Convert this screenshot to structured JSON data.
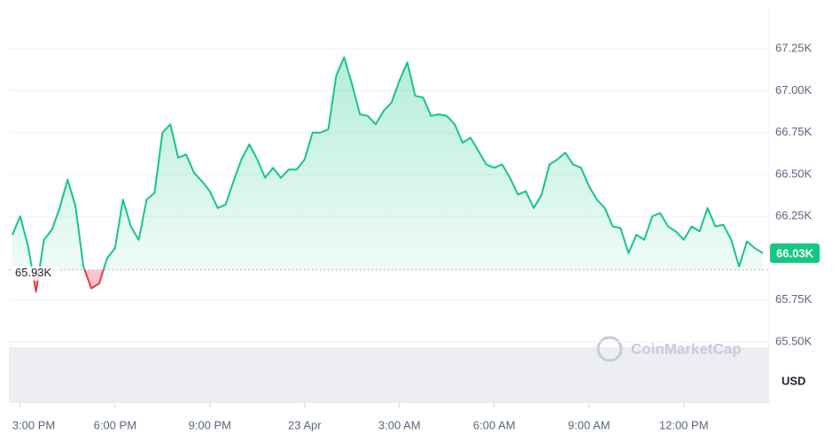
{
  "chart_data": {
    "type": "area",
    "x": [
      14.75,
      15,
      15.25,
      15.5,
      15.75,
      16,
      16.25,
      16.5,
      16.75,
      17,
      17.25,
      17.5,
      17.75,
      18,
      18.25,
      18.5,
      18.75,
      19,
      19.25,
      19.5,
      19.75,
      20,
      20.25,
      20.5,
      20.75,
      21,
      21.25,
      21.5,
      21.75,
      22,
      22.25,
      22.5,
      22.75,
      23,
      23.25,
      23.5,
      23.75,
      24,
      24.25,
      24.5,
      24.75,
      25,
      25.25,
      25.5,
      25.75,
      26,
      26.25,
      26.5,
      26.75,
      27,
      27.25,
      27.5,
      27.75,
      28,
      28.25,
      28.5,
      28.75,
      29,
      29.25,
      29.5,
      29.75,
      30,
      30.25,
      30.5,
      30.75,
      31,
      31.25,
      31.5,
      31.75,
      32,
      32.25,
      32.5,
      32.75,
      33,
      33.25,
      33.5,
      33.75,
      34,
      34.25,
      34.5,
      34.75,
      35,
      35.25,
      35.5,
      35.75,
      36,
      36.25,
      36.5,
      36.75,
      37,
      37.25,
      37.5,
      37.75,
      38,
      38.25,
      38.5
    ],
    "values": [
      66.14,
      66.25,
      66.07,
      65.8,
      66.11,
      66.17,
      66.3,
      66.47,
      66.31,
      65.95,
      65.82,
      65.85,
      66.0,
      66.06,
      66.35,
      66.19,
      66.11,
      66.35,
      66.39,
      66.75,
      66.8,
      66.6,
      66.62,
      66.51,
      66.46,
      66.4,
      66.3,
      66.32,
      66.46,
      66.59,
      66.68,
      66.59,
      66.48,
      66.54,
      66.48,
      66.53,
      66.53,
      66.59,
      66.75,
      66.75,
      66.77,
      67.09,
      67.2,
      67.04,
      66.86,
      66.85,
      66.8,
      66.88,
      66.93,
      67.06,
      67.17,
      66.97,
      66.96,
      66.85,
      66.86,
      66.85,
      66.8,
      66.69,
      66.72,
      66.64,
      66.56,
      66.54,
      66.56,
      66.48,
      66.38,
      66.4,
      66.3,
      66.38,
      66.56,
      66.59,
      66.63,
      66.56,
      66.54,
      66.43,
      66.35,
      66.3,
      66.19,
      66.18,
      66.03,
      66.14,
      66.11,
      66.25,
      66.27,
      66.19,
      66.16,
      66.11,
      66.19,
      66.16,
      66.3,
      66.19,
      66.2,
      66.11,
      65.95,
      66.1,
      66.06,
      66.03
    ],
    "xlim": [
      14.64,
      38.7
    ],
    "xticks": [
      {
        "value": 15,
        "label": "3:00 PM"
      },
      {
        "value": 18,
        "label": "6:00 PM"
      },
      {
        "value": 21,
        "label": "9:00 PM"
      },
      {
        "value": 24,
        "label": "23 Apr"
      },
      {
        "value": 27,
        "label": "3:00 AM"
      },
      {
        "value": 30,
        "label": "6:00 AM"
      },
      {
        "value": 33,
        "label": "9:00 AM"
      },
      {
        "value": 36,
        "label": "12:00 PM"
      }
    ],
    "ylim": [
      65.135,
      67.5
    ],
    "yticks": [
      {
        "value": 65.5,
        "label": "65.50K"
      },
      {
        "value": 65.75,
        "label": "65.75K"
      },
      {
        "value": 66.25,
        "label": "66.25K"
      },
      {
        "value": 66.5,
        "label": "66.50K"
      },
      {
        "value": 66.75,
        "label": "66.75K"
      },
      {
        "value": 67.0,
        "label": "67.00K"
      },
      {
        "value": 67.25,
        "label": "67.25K"
      }
    ],
    "baseline": {
      "value": 65.93,
      "label": "65.93K"
    },
    "last_price": {
      "value": 66.03,
      "label": "66.03K"
    },
    "currency": "USD",
    "watermark": "CoinMarketCap",
    "grid": true,
    "up_color": "#16c784",
    "down_color": "#ea3943"
  }
}
